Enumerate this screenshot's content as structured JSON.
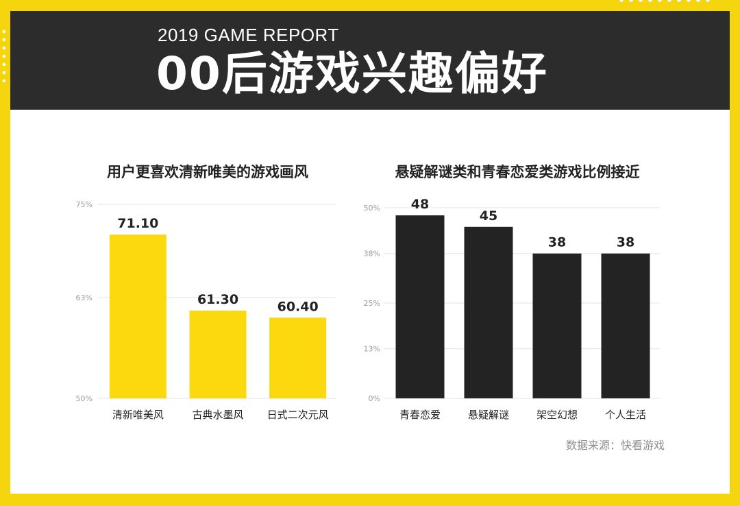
{
  "header": {
    "subtitle": "2019 GAME REPORT",
    "title": "00后游戏兴趣偏好"
  },
  "colors": {
    "background": "#f5d60e",
    "header_bg": "#2c2c2c",
    "left_bars": "#fcd80f",
    "right_bars": "#232323"
  },
  "chart_data": [
    {
      "type": "bar",
      "title": "用户更喜欢清新唯美的游戏画风",
      "categories": [
        "清新唯美风",
        "古典水墨风",
        "日式二次元风"
      ],
      "values": [
        71.1,
        61.3,
        60.4
      ],
      "value_labels": [
        "71.10",
        "61.30",
        "60.40"
      ],
      "ylim": [
        50,
        75
      ],
      "yticks": [
        50,
        63,
        75
      ],
      "ytick_labels": [
        "50%",
        "63%",
        "75%"
      ],
      "grid": true,
      "xlabel": "",
      "ylabel": ""
    },
    {
      "type": "bar",
      "title": "悬疑解谜类和青春恋爱类游戏比例接近",
      "categories": [
        "青春恋爱",
        "悬疑解谜",
        "架空幻想",
        "个人生活"
      ],
      "values": [
        48,
        45,
        38,
        38
      ],
      "value_labels": [
        "48",
        "45",
        "38",
        "38"
      ],
      "ylim": [
        0,
        50
      ],
      "yticks": [
        0,
        13,
        25,
        38,
        50
      ],
      "ytick_labels": [
        "0%",
        "13%",
        "25%",
        "38%",
        "50%"
      ],
      "grid": true,
      "xlabel": "",
      "ylabel": ""
    }
  ],
  "source_note": "数据来源：快看游戏"
}
